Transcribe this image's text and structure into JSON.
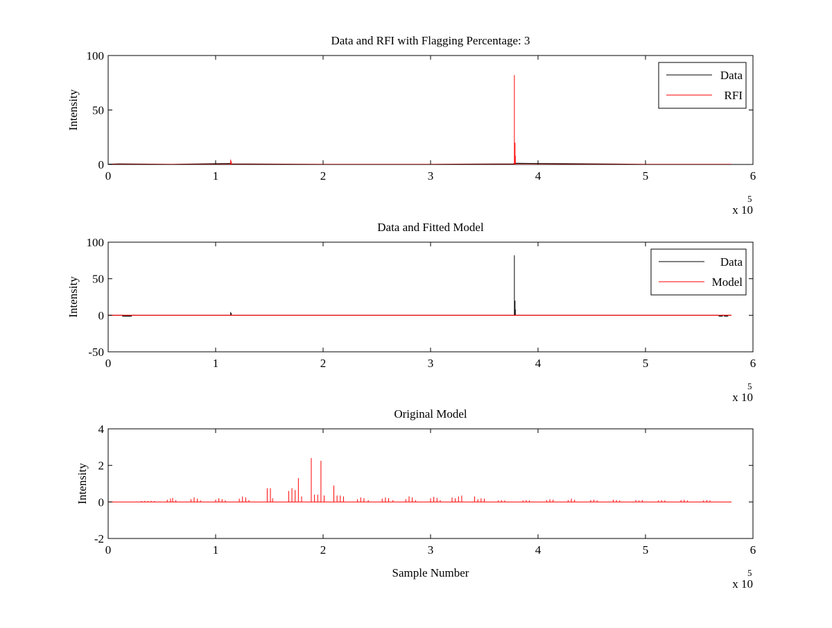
{
  "chart_data": [
    {
      "type": "line",
      "title": "Data and RFI with Flagging Percentage: 3",
      "xlabel": "",
      "ylabel": "Intensity",
      "xlim": [
        0,
        600000
      ],
      "ylim": [
        0,
        100
      ],
      "xticks": [
        0,
        1,
        2,
        3,
        4,
        5,
        6
      ],
      "xtick_multiplier": "x 10",
      "xtick_exponent": "5",
      "yticks": [
        0,
        50,
        100
      ],
      "legend": {
        "position": "top-right",
        "entries": [
          "Data",
          "RFI"
        ]
      },
      "series": [
        {
          "name": "Data",
          "color": "#000000",
          "points": [
            [
              0,
              0.2
            ],
            [
              10000,
              0.5
            ],
            [
              60000,
              0.1
            ],
            [
              113500,
              0.8
            ],
            [
              115000,
              0.5
            ],
            [
              200000,
              0.1
            ],
            [
              300000,
              0.1
            ],
            [
              377000,
              0.5
            ],
            [
              378500,
              1.0
            ],
            [
              500000,
              0.1
            ],
            [
              580000,
              0.1
            ]
          ]
        },
        {
          "name": "RFI",
          "color": "#ff0000",
          "spikes": [
            [
              114000,
              4.5
            ],
            [
              114500,
              3.0
            ],
            [
              378000,
              82
            ],
            [
              378600,
              20
            ],
            [
              378900,
              8
            ]
          ]
        }
      ]
    },
    {
      "type": "line",
      "title": "Data and Fitted Model",
      "xlabel": "",
      "ylabel": "Intensity",
      "xlim": [
        0,
        600000
      ],
      "ylim": [
        -50,
        100
      ],
      "xticks": [
        0,
        1,
        2,
        3,
        4,
        5,
        6
      ],
      "xtick_multiplier": "x 10",
      "xtick_exponent": "5",
      "yticks": [
        -50,
        0,
        50,
        100
      ],
      "legend": {
        "position": "top-right",
        "entries": [
          "Data",
          "Model"
        ]
      },
      "series": [
        {
          "name": "Data",
          "color": "#000000",
          "spikes": [
            [
              114000,
              4.5
            ],
            [
              114500,
              3.0
            ],
            [
              378000,
              82
            ],
            [
              378600,
              20
            ],
            [
              378900,
              8
            ]
          ],
          "dips": [
            [
              15000,
              -1
            ],
            [
              18000,
              -1
            ],
            [
              20000,
              -1
            ],
            [
              570000,
              -1
            ],
            [
              575000,
              -1
            ]
          ]
        },
        {
          "name": "Model",
          "color": "#ff0000",
          "points": [
            [
              0,
              0
            ],
            [
              580000,
              0
            ]
          ]
        }
      ]
    },
    {
      "type": "line",
      "title": "Original Model",
      "xlabel": "Sample Number",
      "ylabel": "Intensity",
      "xlim": [
        0,
        600000
      ],
      "ylim": [
        -2,
        4
      ],
      "xticks": [
        0,
        1,
        2,
        3,
        4,
        5,
        6
      ],
      "xtick_multiplier": "x 10",
      "xtick_exponent": "5",
      "yticks": [
        -2,
        0,
        2,
        4
      ],
      "series": [
        {
          "name": "",
          "color": "#ff0000",
          "spikes": [
            [
              31000,
              0.05
            ],
            [
              34000,
              0.06
            ],
            [
              37000,
              0.05
            ],
            [
              40000,
              0.06
            ],
            [
              43000,
              0.05
            ],
            [
              55000,
              0.12
            ],
            [
              58000,
              0.18
            ],
            [
              60000,
              0.22
            ],
            [
              63000,
              0.1
            ],
            [
              77000,
              0.15
            ],
            [
              80000,
              0.25
            ],
            [
              83000,
              0.18
            ],
            [
              86000,
              0.08
            ],
            [
              100000,
              0.12
            ],
            [
              103000,
              0.2
            ],
            [
              106000,
              0.15
            ],
            [
              109000,
              0.08
            ],
            [
              122000,
              0.18
            ],
            [
              125000,
              0.3
            ],
            [
              128000,
              0.25
            ],
            [
              131000,
              0.1
            ],
            [
              148000,
              0.75
            ],
            [
              151000,
              0.75
            ],
            [
              153000,
              0.2
            ],
            [
              168000,
              0.6
            ],
            [
              171000,
              0.75
            ],
            [
              174000,
              0.65
            ],
            [
              177000,
              1.3
            ],
            [
              180000,
              0.3
            ],
            [
              189000,
              2.4
            ],
            [
              192000,
              0.4
            ],
            [
              195000,
              0.4
            ],
            [
              198000,
              2.25
            ],
            [
              201000,
              0.35
            ],
            [
              210000,
              0.9
            ],
            [
              213000,
              0.35
            ],
            [
              216000,
              0.35
            ],
            [
              219000,
              0.3
            ],
            [
              232000,
              0.15
            ],
            [
              235000,
              0.25
            ],
            [
              238000,
              0.2
            ],
            [
              242000,
              0.1
            ],
            [
              255000,
              0.18
            ],
            [
              258000,
              0.25
            ],
            [
              261000,
              0.2
            ],
            [
              265000,
              0.1
            ],
            [
              277000,
              0.15
            ],
            [
              280000,
              0.3
            ],
            [
              283000,
              0.25
            ],
            [
              286000,
              0.1
            ],
            [
              300000,
              0.2
            ],
            [
              303000,
              0.28
            ],
            [
              306000,
              0.22
            ],
            [
              309000,
              0.1
            ],
            [
              320000,
              0.25
            ],
            [
              323000,
              0.2
            ],
            [
              326000,
              0.3
            ],
            [
              329000,
              0.35
            ],
            [
              341000,
              0.3
            ],
            [
              344000,
              0.15
            ],
            [
              347000,
              0.2
            ],
            [
              350000,
              0.18
            ],
            [
              363000,
              0.08
            ],
            [
              366000,
              0.1
            ],
            [
              369000,
              0.08
            ],
            [
              386000,
              0.08
            ],
            [
              389000,
              0.1
            ],
            [
              392000,
              0.08
            ],
            [
              408000,
              0.1
            ],
            [
              411000,
              0.15
            ],
            [
              414000,
              0.12
            ],
            [
              428000,
              0.1
            ],
            [
              431000,
              0.18
            ],
            [
              434000,
              0.12
            ],
            [
              449000,
              0.1
            ],
            [
              452000,
              0.12
            ],
            [
              455000,
              0.08
            ],
            [
              470000,
              0.12
            ],
            [
              473000,
              0.1
            ],
            [
              476000,
              0.08
            ],
            [
              491000,
              0.1
            ],
            [
              494000,
              0.08
            ],
            [
              497000,
              0.1
            ],
            [
              512000,
              0.08
            ],
            [
              515000,
              0.1
            ],
            [
              518000,
              0.08
            ],
            [
              533000,
              0.1
            ],
            [
              536000,
              0.12
            ],
            [
              539000,
              0.08
            ],
            [
              554000,
              0.08
            ],
            [
              557000,
              0.1
            ],
            [
              560000,
              0.08
            ]
          ],
          "range": [
            0,
            580000
          ]
        }
      ]
    }
  ]
}
